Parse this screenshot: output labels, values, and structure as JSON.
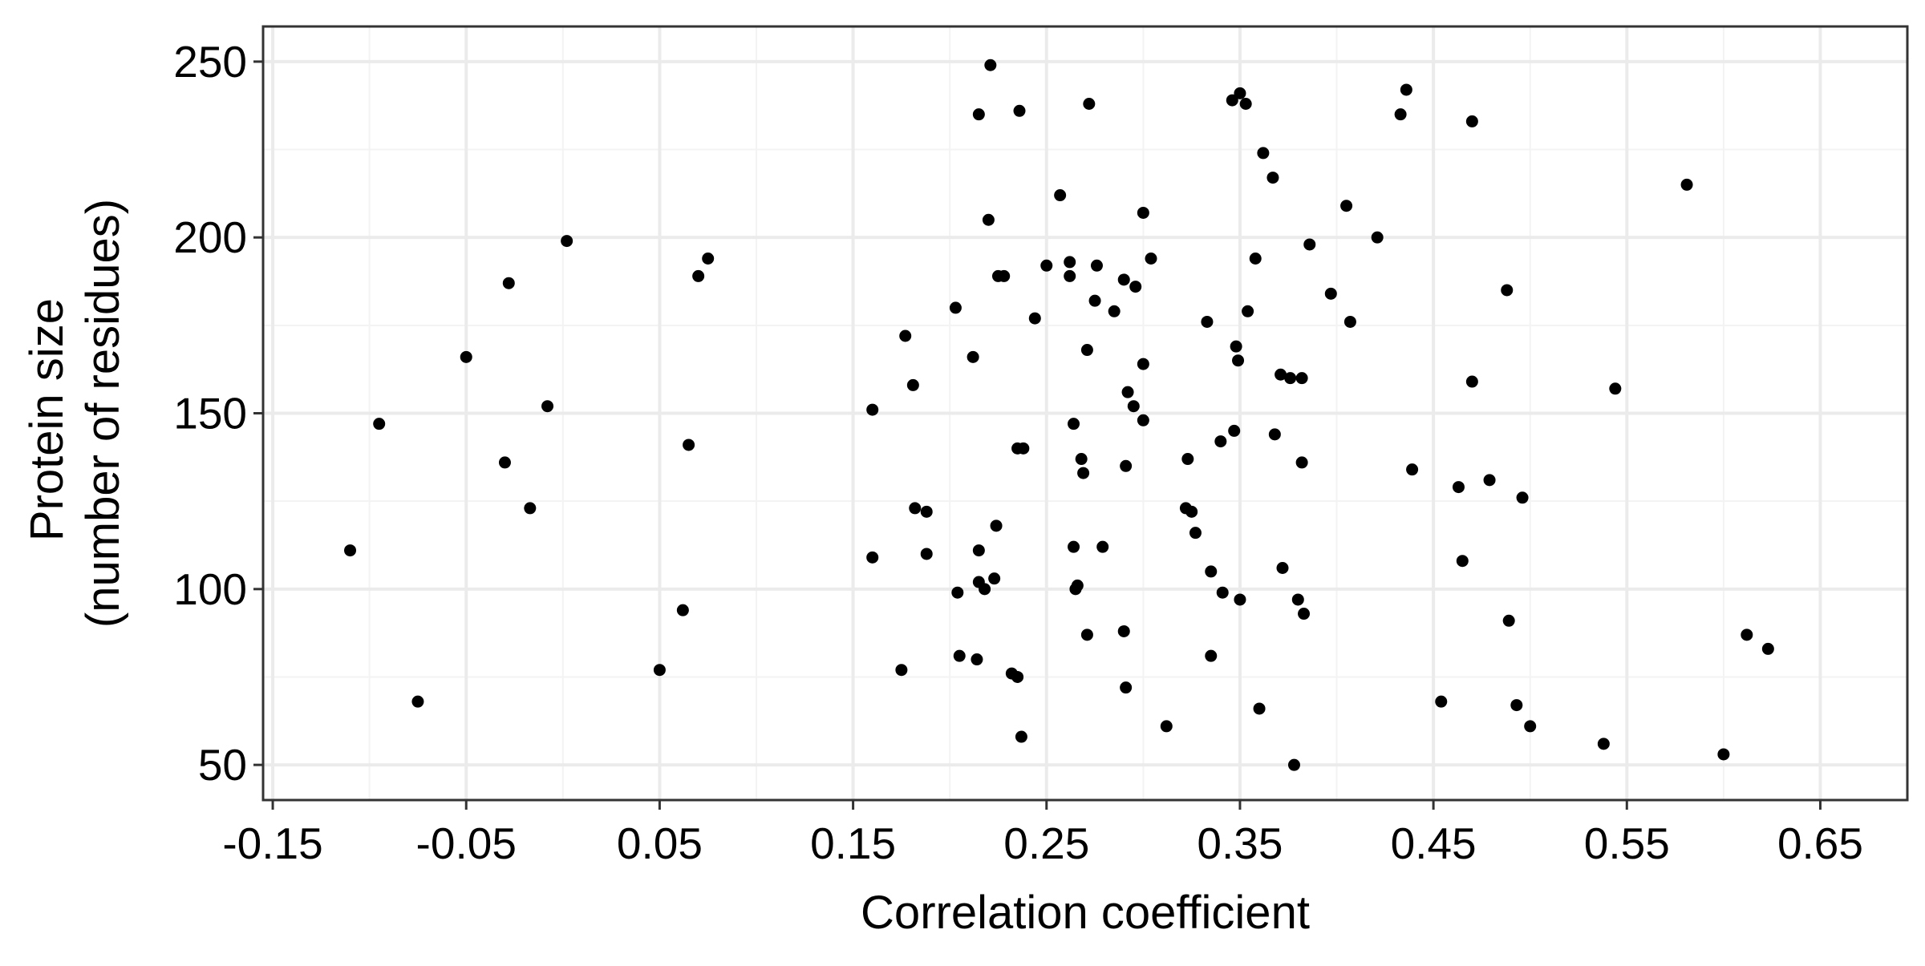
{
  "chart_data": {
    "type": "scatter",
    "title": "",
    "xlabel": "Correlation coefficient",
    "ylabel_lines": [
      "Protein size",
      "(number of residues)"
    ],
    "xlim": [
      -0.155,
      0.695
    ],
    "ylim": [
      40,
      260
    ],
    "x_ticks": [
      -0.15,
      -0.05,
      0.05,
      0.15,
      0.25,
      0.35,
      0.45,
      0.55,
      0.65
    ],
    "x_tick_labels": [
      "-0.15",
      "-0.05",
      "0.05",
      "0.15",
      "0.25",
      "0.35",
      "0.45",
      "0.55",
      "0.65"
    ],
    "y_ticks": [
      50,
      100,
      150,
      200,
      250
    ],
    "y_tick_labels": [
      "50",
      "100",
      "150",
      "200",
      "250"
    ],
    "grid": true,
    "legend": "none",
    "colors": {
      "point": "#000000",
      "major_grid": "#ebebeb",
      "minor_grid": "#f3f3f3",
      "panel_border": "#333333",
      "tick": "#333333",
      "background": "#ffffff"
    },
    "points": [
      [
        -0.11,
        111
      ],
      [
        -0.095,
        147
      ],
      [
        -0.075,
        68
      ],
      [
        -0.05,
        166
      ],
      [
        -0.03,
        136
      ],
      [
        -0.028,
        187
      ],
      [
        -0.017,
        123
      ],
      [
        -0.008,
        152
      ],
      [
        0.002,
        199
      ],
      [
        0.05,
        77
      ],
      [
        0.062,
        94
      ],
      [
        0.065,
        141
      ],
      [
        0.07,
        189
      ],
      [
        0.075,
        194
      ],
      [
        0.16,
        151
      ],
      [
        0.16,
        109
      ],
      [
        0.175,
        77
      ],
      [
        0.177,
        172
      ],
      [
        0.181,
        158
      ],
      [
        0.182,
        123
      ],
      [
        0.188,
        122
      ],
      [
        0.188,
        110
      ],
      [
        0.203,
        180
      ],
      [
        0.204,
        99
      ],
      [
        0.205,
        81
      ],
      [
        0.212,
        166
      ],
      [
        0.214,
        80
      ],
      [
        0.215,
        111
      ],
      [
        0.215,
        102
      ],
      [
        0.215,
        235
      ],
      [
        0.218,
        100
      ],
      [
        0.22,
        205
      ],
      [
        0.221,
        249
      ],
      [
        0.223,
        103
      ],
      [
        0.224,
        118
      ],
      [
        0.225,
        189
      ],
      [
        0.228,
        189
      ],
      [
        0.232,
        76
      ],
      [
        0.235,
        75
      ],
      [
        0.235,
        140
      ],
      [
        0.236,
        236
      ],
      [
        0.237,
        58
      ],
      [
        0.238,
        140
      ],
      [
        0.244,
        177
      ],
      [
        0.25,
        192
      ],
      [
        0.257,
        212
      ],
      [
        0.262,
        193
      ],
      [
        0.262,
        189
      ],
      [
        0.264,
        147
      ],
      [
        0.264,
        112
      ],
      [
        0.265,
        100
      ],
      [
        0.266,
        101
      ],
      [
        0.268,
        137
      ],
      [
        0.269,
        133
      ],
      [
        0.271,
        87
      ],
      [
        0.271,
        168
      ],
      [
        0.272,
        238
      ],
      [
        0.275,
        182
      ],
      [
        0.276,
        192
      ],
      [
        0.279,
        112
      ],
      [
        0.285,
        179
      ],
      [
        0.29,
        188
      ],
      [
        0.29,
        88
      ],
      [
        0.291,
        135
      ],
      [
        0.291,
        72
      ],
      [
        0.292,
        156
      ],
      [
        0.295,
        152
      ],
      [
        0.296,
        186
      ],
      [
        0.3,
        207
      ],
      [
        0.3,
        164
      ],
      [
        0.3,
        148
      ],
      [
        0.304,
        194
      ],
      [
        0.312,
        61
      ],
      [
        0.322,
        123
      ],
      [
        0.323,
        137
      ],
      [
        0.325,
        122
      ],
      [
        0.327,
        116
      ],
      [
        0.333,
        176
      ],
      [
        0.335,
        105
      ],
      [
        0.335,
        81
      ],
      [
        0.34,
        142
      ],
      [
        0.341,
        99
      ],
      [
        0.346,
        239
      ],
      [
        0.347,
        145
      ],
      [
        0.348,
        169
      ],
      [
        0.349,
        165
      ],
      [
        0.35,
        97
      ],
      [
        0.35,
        241
      ],
      [
        0.353,
        238
      ],
      [
        0.354,
        179
      ],
      [
        0.358,
        194
      ],
      [
        0.36,
        66
      ],
      [
        0.362,
        224
      ],
      [
        0.367,
        217
      ],
      [
        0.368,
        144
      ],
      [
        0.371,
        161
      ],
      [
        0.372,
        106
      ],
      [
        0.376,
        160
      ],
      [
        0.378,
        50
      ],
      [
        0.38,
        97
      ],
      [
        0.382,
        160
      ],
      [
        0.382,
        136
      ],
      [
        0.383,
        93
      ],
      [
        0.386,
        198
      ],
      [
        0.397,
        184
      ],
      [
        0.405,
        209
      ],
      [
        0.407,
        176
      ],
      [
        0.421,
        200
      ],
      [
        0.433,
        235
      ],
      [
        0.436,
        242
      ],
      [
        0.439,
        134
      ],
      [
        0.454,
        68
      ],
      [
        0.463,
        129
      ],
      [
        0.465,
        108
      ],
      [
        0.47,
        233
      ],
      [
        0.47,
        159
      ],
      [
        0.479,
        131
      ],
      [
        0.488,
        185
      ],
      [
        0.489,
        91
      ],
      [
        0.493,
        67
      ],
      [
        0.496,
        126
      ],
      [
        0.5,
        61
      ],
      [
        0.538,
        56
      ],
      [
        0.544,
        157
      ],
      [
        0.581,
        215
      ],
      [
        0.6,
        53
      ],
      [
        0.612,
        87
      ],
      [
        0.623,
        83
      ]
    ]
  }
}
